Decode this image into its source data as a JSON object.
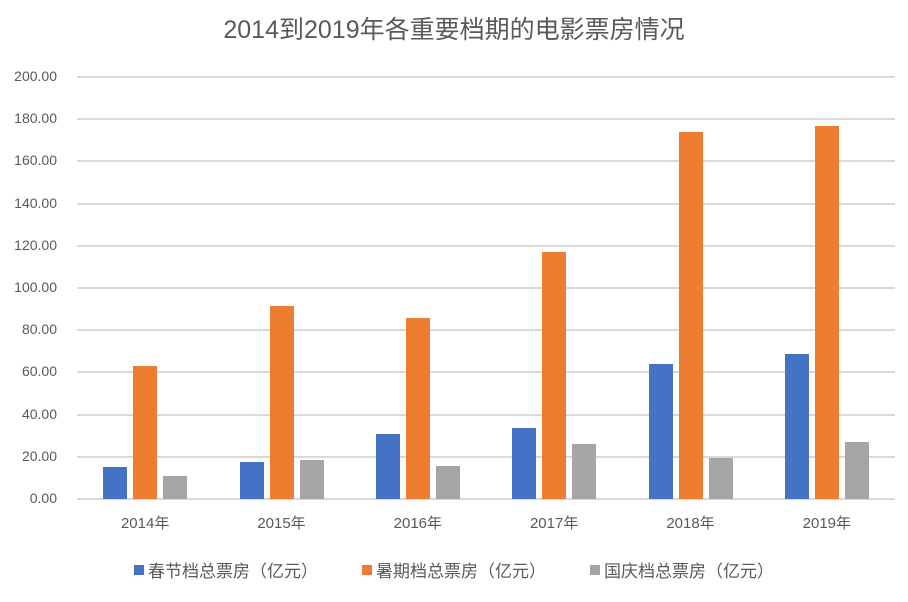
{
  "chart_data": {
    "type": "bar",
    "title": "2014到2019年各重要档期的电影票房情况",
    "xlabel": "",
    "ylabel": "",
    "ylim": [
      0,
      200
    ],
    "yticks": [
      "0.00",
      "20.00",
      "40.00",
      "60.00",
      "80.00",
      "100.00",
      "120.00",
      "140.00",
      "160.00",
      "180.00",
      "200.00"
    ],
    "categories": [
      "2014年",
      "2015年",
      "2016年",
      "2017年",
      "2018年",
      "2019年"
    ],
    "series": [
      {
        "name": "春节档总票房（亿元）",
        "color": "#4472c4",
        "values": [
          15.2,
          17.6,
          30.9,
          33.8,
          64.0,
          68.7
        ]
      },
      {
        "name": "暑期档总票房（亿元）",
        "color": "#ed7d31",
        "values": [
          63.0,
          91.3,
          85.8,
          117.0,
          174.0,
          176.8
        ]
      },
      {
        "name": "国庆档总票房（亿元）",
        "color": "#a5a5a5",
        "values": [
          11.0,
          18.6,
          15.7,
          26.3,
          19.5,
          27.0
        ]
      }
    ],
    "grid": true,
    "legend_position": "bottom"
  }
}
